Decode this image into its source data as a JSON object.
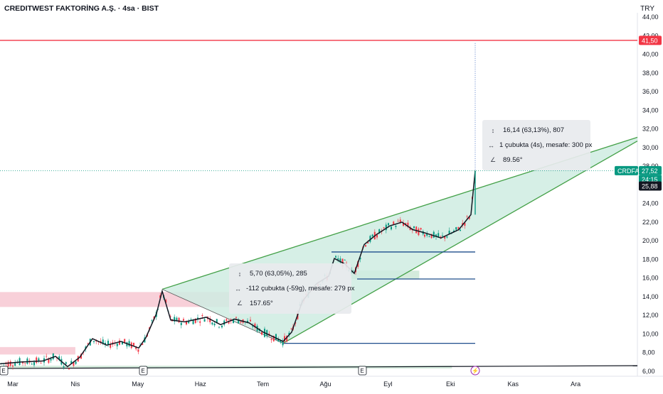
{
  "header": {
    "title": "CREDITWEST FAKTORİNG A.Ş. · 4sa · BIST",
    "currency": "TRY"
  },
  "chart_data": {
    "type": "candlestick",
    "symbol": "CRDFA",
    "price_axis": {
      "min": 6,
      "max": 44,
      "ticks": [
        "6,00",
        "8,00",
        "10,00",
        "12,00",
        "14,00",
        "16,00",
        "18,00",
        "20,00",
        "22,00",
        "24,00",
        "26,00",
        "28,00",
        "30,00",
        "32,00",
        "34,00",
        "36,00",
        "38,00",
        "40,00",
        "42,00",
        "44,00"
      ]
    },
    "time_axis": {
      "labels": [
        "Mar",
        "Nis",
        "May",
        "Haz",
        "Tem",
        "Ağu",
        "Eyl",
        "Eki",
        "Kas",
        "Ara"
      ]
    },
    "price_series": [
      {
        "x": "Şub",
        "y": 6.8
      },
      {
        "x": "Şub",
        "y": 7.0
      },
      {
        "x": "Mar",
        "y": 7.1
      },
      {
        "x": "Mar",
        "y": 7.6
      },
      {
        "x": "Mar",
        "y": 6.5
      },
      {
        "x": "Nis",
        "y": 7.5
      },
      {
        "x": "Nis",
        "y": 9.5
      },
      {
        "x": "Nis",
        "y": 8.8
      },
      {
        "x": "Nis",
        "y": 9.2
      },
      {
        "x": "Nis",
        "y": 8.5
      },
      {
        "x": "May",
        "y": 9.6
      },
      {
        "x": "May",
        "y": 12.2
      },
      {
        "x": "May",
        "y": 14.6
      },
      {
        "x": "May",
        "y": 11.5
      },
      {
        "x": "May",
        "y": 11.3
      },
      {
        "x": "Haz",
        "y": 11.8
      },
      {
        "x": "Haz",
        "y": 11.0
      },
      {
        "x": "Haz",
        "y": 11.6
      },
      {
        "x": "Haz",
        "y": 11.2
      },
      {
        "x": "Tem",
        "y": 10.2
      },
      {
        "x": "Tem",
        "y": 9.2
      },
      {
        "x": "Tem",
        "y": 10.2
      },
      {
        "x": "Tem",
        "y": 13.5
      },
      {
        "x": "Tem",
        "y": 15.4
      },
      {
        "x": "Ağu",
        "y": 16.2
      },
      {
        "x": "Ağu",
        "y": 18.1
      },
      {
        "x": "Ağu",
        "y": 17.5
      },
      {
        "x": "Ağu",
        "y": 16.5
      },
      {
        "x": "Ağu",
        "y": 19.6
      },
      {
        "x": "Ağu",
        "y": 20.6
      },
      {
        "x": "Eyl",
        "y": 21.6
      },
      {
        "x": "Eyl",
        "y": 22.0
      },
      {
        "x": "Eyl",
        "y": 21.2
      },
      {
        "x": "Eyl",
        "y": 20.9
      },
      {
        "x": "Eyl",
        "y": 20.3
      },
      {
        "x": "Eyl",
        "y": 21.2
      },
      {
        "x": "Eyl",
        "y": 22.8
      },
      {
        "x": "Eki",
        "y": 27.52
      }
    ],
    "horizontal_line": {
      "value": 41.5,
      "label": "41,50",
      "color": "#f23645"
    },
    "current_price": {
      "label": "27,52",
      "countdown": "24:15",
      "symbol_label": "CRDFA",
      "color": "#089981"
    },
    "crosshair_price": {
      "label": "25,88"
    },
    "zones": {
      "red": [
        {
          "from": 12.9,
          "to": 14.5,
          "x_from": "Şub",
          "x_to": "Tem"
        },
        {
          "from": 7.8,
          "to": 8.6,
          "x_from": "Şub",
          "x_to": "Nis"
        }
      ],
      "green": [
        {
          "from": 15.9,
          "to": 16.8,
          "x_from": "Ağu",
          "x_to": "Eyl"
        },
        {
          "from": 6.3,
          "to": 6.6,
          "x_from": "Şub",
          "x_to": "Eki"
        }
      ]
    },
    "support_lines": [
      {
        "value": 18.8,
        "x_from": "Ağu",
        "x_to": "Eki"
      },
      {
        "value": 15.9,
        "x_from": "Ağu",
        "x_to": "Eki"
      },
      {
        "value": 9.0,
        "x_from": "Tem",
        "x_to": "Eki"
      }
    ],
    "wedge": {
      "upper_start": 14.8,
      "upper_end": 31.1,
      "lower_start": 9.0,
      "lower_end": 30.7
    },
    "measure_1": {
      "line1": "5,70 (63,05%), 285",
      "line2": "-112 çubukta (-59g), mesafe: 279 px",
      "line3": "157.65°"
    },
    "measure_2": {
      "line1": "16,14 (63,13%), 807",
      "line2": "1 çubukta (4s), mesafe: 300 px",
      "line3": "89.56°"
    },
    "event_markers": [
      "E",
      "E",
      "E"
    ],
    "colors": {
      "wedge_fill": "#cfece2",
      "wedge_line": "#43a047",
      "support": "#1e4d8c",
      "price_line": "#131722",
      "up": "#089981",
      "down": "#f23645"
    }
  }
}
